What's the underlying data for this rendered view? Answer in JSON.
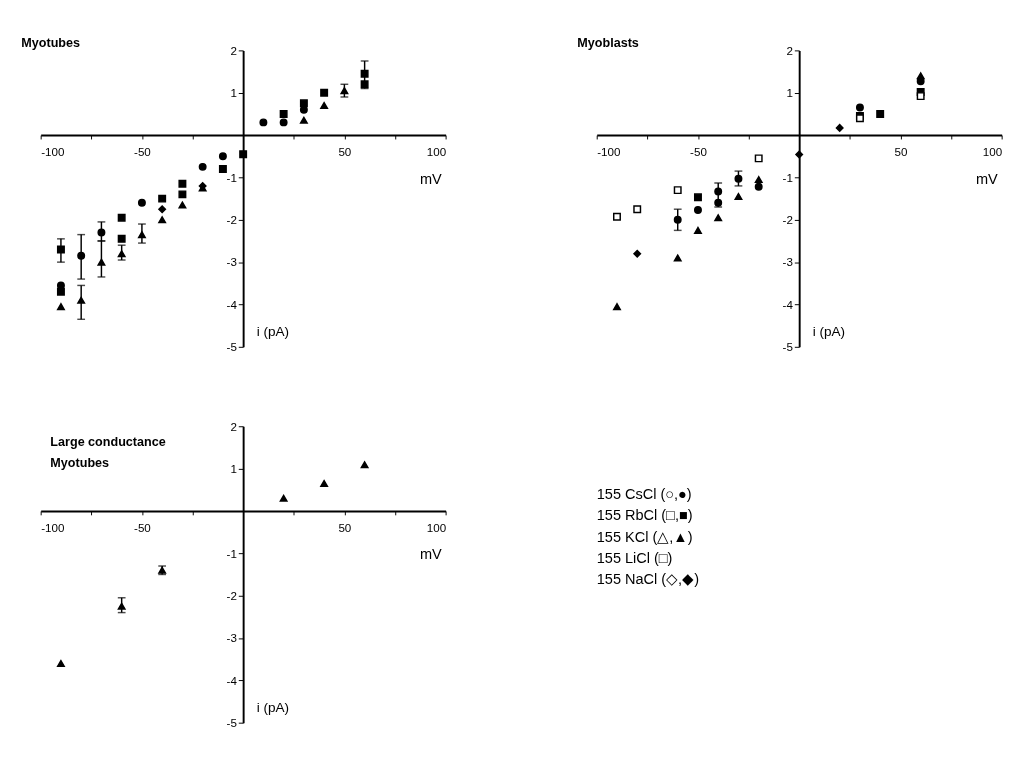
{
  "chart_data": [
    {
      "type": "scatter",
      "title": "Myotubes",
      "xlabel": "mV",
      "ylabel": "i (pA)",
      "xlim": [
        -100,
        100
      ],
      "ylim": [
        -5,
        2
      ],
      "xticks": [
        -100,
        {
          "value": -75,
          "label": null
        },
        -50,
        {
          "value": -25,
          "label": null
        },
        {
          "value": 25,
          "label": null
        },
        50,
        {
          "value": 75,
          "label": null
        },
        100
      ],
      "yticks": [
        2,
        1,
        -1,
        -2,
        -3,
        -4,
        -5
      ],
      "grid": false,
      "series": [
        {
          "marker": "circle",
          "color": "#000000",
          "x": [
            -90,
            -80,
            -70,
            -50,
            -20,
            -10,
            10,
            20,
            30
          ],
          "values": [
            -3.55,
            -2.85,
            -2.3,
            -1.6,
            -0.75,
            -0.5,
            0.3,
            0.3,
            0.6
          ],
          "errors": [
            null,
            [
              -3.4,
              -2.35
            ],
            [
              -2.5,
              -2.05
            ],
            null,
            null,
            null,
            null,
            null,
            null
          ]
        },
        {
          "marker": "square",
          "color": "#000000",
          "x": [
            -90,
            -90,
            -60,
            -60,
            -40,
            -30,
            -30,
            -10,
            0,
            20,
            30,
            40,
            60,
            60
          ],
          "values": [
            -2.7,
            -3.7,
            -1.95,
            -2.45,
            -1.5,
            -1.15,
            -1.4,
            -0.8,
            -0.45,
            0.5,
            0.75,
            1.0,
            1.2,
            1.45
          ],
          "errors": [
            [
              -3.0,
              -2.45
            ],
            null,
            null,
            null,
            null,
            null,
            null,
            null,
            null,
            null,
            null,
            null,
            null,
            [
              1.1,
              1.75
            ]
          ]
        },
        {
          "marker": "triangle",
          "color": "#000000",
          "x": [
            -90,
            -80,
            -70,
            -60,
            -50,
            -40,
            -30,
            -20,
            30,
            40,
            50
          ],
          "values": [
            -4.05,
            -3.9,
            -3.0,
            -2.8,
            -2.35,
            -2.0,
            -1.65,
            -1.25,
            0.35,
            0.7,
            1.05
          ],
          "errors": [
            null,
            [
              -4.35,
              -3.55
            ],
            [
              -3.35,
              -2.5
            ],
            [
              -2.95,
              -2.6
            ],
            [
              -2.55,
              -2.1
            ],
            null,
            null,
            null,
            null,
            null,
            [
              0.9,
              1.2
            ]
          ]
        },
        {
          "marker": "diamond",
          "color": "#000000",
          "x": [
            -40,
            -20
          ],
          "values": [
            -1.75,
            -1.2
          ]
        }
      ]
    },
    {
      "type": "scatter",
      "title": "Myoblasts",
      "xlabel": "mV",
      "ylabel": "i (pA)",
      "xlim": [
        -100,
        100
      ],
      "ylim": [
        -5,
        2
      ],
      "xticks": [
        -100,
        {
          "value": -75,
          "label": null
        },
        -50,
        {
          "value": -25,
          "label": null
        },
        {
          "value": 25,
          "label": null
        },
        50,
        {
          "value": 75,
          "label": null
        },
        100
      ],
      "yticks": [
        2,
        1,
        -1,
        -2,
        -3,
        -4,
        -5
      ],
      "grid": false,
      "series": [
        {
          "marker": "circle",
          "color": "#000000",
          "x": [
            -60,
            -50,
            -40,
            -40,
            -30,
            -20,
            30,
            60
          ],
          "values": [
            -2.0,
            -1.77,
            -1.33,
            -1.6,
            -1.03,
            -1.22,
            0.65,
            1.27
          ],
          "errors": [
            [
              -2.25,
              -1.75
            ],
            null,
            [
              -1.7,
              -1.13
            ],
            null,
            [
              -1.2,
              -0.85
            ],
            null,
            null,
            null
          ]
        },
        {
          "marker": "square",
          "color": "#000000",
          "x": [
            -50,
            30,
            40,
            60
          ],
          "values": [
            -1.47,
            0.45,
            0.5,
            1.02
          ]
        },
        {
          "marker": "triangle",
          "color": "#000000",
          "x": [
            -90,
            -60,
            -50,
            -40,
            -30,
            -20,
            60
          ],
          "values": [
            -4.05,
            -2.9,
            -2.25,
            -1.95,
            -1.45,
            -1.05,
            1.4
          ]
        },
        {
          "marker": "square",
          "color": "#ffffff",
          "x": [
            -90,
            -80,
            -60,
            -20,
            30,
            60
          ],
          "values": [
            -1.93,
            -1.75,
            -1.3,
            -0.55,
            0.4,
            0.92
          ]
        },
        {
          "marker": "diamond",
          "color": "#000000",
          "x": [
            -80,
            0,
            20
          ],
          "values": [
            -2.8,
            -0.46,
            0.17
          ]
        }
      ]
    },
    {
      "type": "scatter",
      "title": "Large conductance\nMyotubes",
      "xlabel": "mV",
      "ylabel": "i (pA)",
      "xlim": [
        -100,
        100
      ],
      "ylim": [
        -5,
        2
      ],
      "xticks": [
        -100,
        {
          "value": -75,
          "label": null
        },
        -50,
        {
          "value": -25,
          "label": null
        },
        {
          "value": 25,
          "label": null
        },
        50,
        {
          "value": 75,
          "label": null
        },
        100
      ],
      "yticks": [
        2,
        1,
        -1,
        -2,
        -3,
        -4,
        -5
      ],
      "grid": false,
      "series": [
        {
          "marker": "triangle",
          "color": "#000000",
          "x": [
            -90,
            -60,
            -40,
            20,
            40,
            60
          ],
          "values": [
            -3.6,
            -2.25,
            -1.4,
            0.3,
            0.65,
            1.09
          ],
          "errors": [
            null,
            [
              -2.4,
              -2.05
            ],
            [
              -1.5,
              -1.3
            ],
            null,
            null,
            null
          ]
        }
      ]
    },
    {
      "type": "other",
      "annotations": [
        "155 CsCl (○,●)",
        "155 RbCl (□,■)",
        "155 KCl (△,▲)",
        "155 LiCl (□)",
        "155 NaCl (◇,◆)"
      ]
    }
  ]
}
